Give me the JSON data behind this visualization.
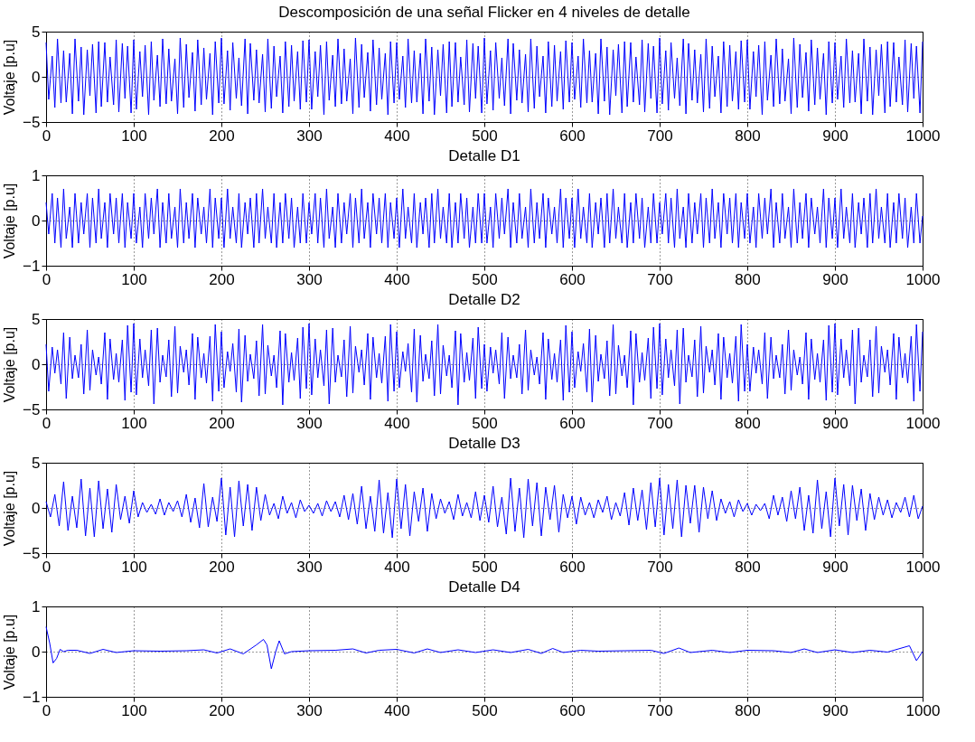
{
  "chart_data": [
    {
      "type": "line",
      "title": "Descomposición de una señal Flicker en 4 niveles de detalle",
      "ylabel": "Voltaje [p.u]",
      "line_style": "solid",
      "grid": true,
      "xlim": [
        0,
        1000
      ],
      "xticks": [
        0,
        100,
        200,
        300,
        400,
        500,
        600,
        700,
        800,
        900,
        1000
      ],
      "ylim": [
        -5,
        5
      ],
      "yticks": [
        -5,
        0,
        5
      ],
      "x": [
        0,
        3,
        7,
        10,
        13,
        17,
        20,
        23,
        27,
        30,
        33,
        37,
        40,
        43,
        47,
        50,
        53,
        57,
        60,
        63,
        67,
        70,
        73,
        77,
        80,
        83,
        87,
        90,
        93,
        97,
        100,
        103,
        107,
        110,
        113,
        117,
        120,
        123,
        127,
        130,
        133,
        137,
        140,
        143,
        147,
        150,
        153,
        157,
        160,
        163,
        167,
        170,
        173,
        177,
        180,
        183,
        187,
        190,
        193,
        197,
        200,
        203,
        207,
        210,
        213,
        217,
        220,
        223,
        227,
        230,
        233,
        237,
        240,
        243,
        247,
        250,
        253,
        257,
        260,
        263,
        267,
        270,
        273,
        277,
        280,
        283,
        287,
        290,
        293,
        297,
        300,
        303,
        307,
        310,
        313,
        317,
        320,
        323,
        327,
        330,
        333,
        337,
        340,
        343,
        347,
        350,
        353,
        357,
        360,
        363,
        367,
        370,
        373,
        377,
        380,
        383,
        387,
        390,
        393,
        397,
        400,
        403,
        407,
        410,
        413,
        417,
        420,
        423,
        427,
        430,
        433,
        437,
        440,
        443,
        447,
        450,
        453,
        457,
        460,
        463,
        467,
        470,
        473,
        477,
        480,
        483,
        487,
        490,
        493,
        497,
        500,
        503,
        507,
        510,
        513,
        517,
        520,
        523,
        527,
        530,
        533,
        537,
        540,
        543,
        547,
        550,
        553,
        557,
        560,
        563,
        567,
        570,
        573,
        577,
        580,
        583,
        587,
        590,
        593,
        597,
        600,
        603,
        607,
        610,
        613,
        617,
        620,
        623,
        627,
        630,
        633,
        637,
        640,
        643,
        647,
        650,
        653,
        657,
        660,
        663,
        667,
        670,
        673,
        677,
        680,
        683,
        687,
        690,
        693,
        697,
        700,
        703,
        707,
        710,
        713,
        717,
        720,
        723,
        727,
        730,
        733,
        737,
        740,
        743,
        747,
        750,
        753,
        757,
        760,
        763,
        767,
        770,
        773,
        777,
        780,
        783,
        787,
        790,
        793,
        797,
        800,
        803,
        807,
        810,
        813,
        817,
        820,
        823,
        827,
        830,
        833,
        837,
        840,
        843,
        847,
        850,
        853,
        857,
        860,
        863,
        867,
        870,
        873,
        877,
        880,
        883,
        887,
        890,
        893,
        897,
        900,
        903,
        907,
        910,
        913,
        917,
        920,
        923,
        927,
        930,
        933,
        937,
        940,
        943,
        947,
        950,
        953,
        957,
        960,
        963,
        967,
        970,
        973,
        977,
        980,
        983,
        987,
        990,
        993,
        997,
        1000
      ],
      "series": [
        {
          "color": "#0000ff",
          "values": [
            3.8,
            -2.5,
            2.3,
            -3.4,
            4.2,
            -2.9,
            2.9,
            -2.8,
            2.6,
            -4.1,
            4.2,
            -2.7,
            3.3,
            -4.2,
            3.0,
            -2.1,
            3.6,
            -4.0,
            3.9,
            -3.3,
            3.8,
            -2.8,
            2.2,
            -3.1,
            4.1,
            -3.9,
            3.7,
            -2.4,
            3.4,
            -4.0,
            4.1,
            -3.6,
            2.8,
            -2.2,
            3.5,
            -4.2,
            3.9,
            -2.6,
            2.4,
            -3.3,
            4.2,
            -3.0,
            3.1,
            -2.7,
            2.0,
            -4.1,
            4.3,
            -3.4,
            3.6,
            -2.3,
            2.7,
            -3.8,
            4.1,
            -3.1,
            3.2,
            -2.5,
            2.6,
            -4.2,
            3.9,
            -2.9,
            4.3,
            -3.0,
            2.9,
            -3.7,
            3.8,
            -2.4,
            2.1,
            -3.2,
            4.2,
            -4.1,
            3.7,
            -2.6,
            3.0,
            -2.9,
            2.5,
            -3.9,
            4.2,
            -3.5,
            3.4,
            -2.2,
            2.3,
            -4.0,
            3.9,
            -3.3,
            3.5,
            -2.7,
            2.8,
            -3.6,
            4.0,
            -2.8,
            4.1,
            -3.6,
            2.8,
            -2.2,
            3.5,
            -4.2,
            3.9,
            -2.6,
            2.4,
            -3.3,
            4.2,
            -3.0,
            3.1,
            -2.7,
            2.0,
            -4.1,
            4.3,
            -3.4,
            3.6,
            -2.3,
            2.7,
            -3.8,
            4.1,
            -3.1,
            3.2,
            -2.5,
            2.6,
            -4.2,
            3.9,
            -2.9,
            3.8,
            -2.5,
            2.3,
            -3.4,
            4.2,
            -2.9,
            2.9,
            -2.8,
            2.6,
            -4.1,
            4.2,
            -2.7,
            3.3,
            -4.2,
            3.0,
            -2.1,
            3.6,
            -4.0,
            3.9,
            -3.3,
            3.8,
            -2.8,
            2.2,
            -3.1,
            4.1,
            -3.9,
            3.7,
            -2.4,
            3.4,
            -4.0,
            4.3,
            -3.0,
            2.9,
            -3.7,
            3.8,
            -2.4,
            2.1,
            -3.2,
            4.2,
            -4.1,
            3.7,
            -2.6,
            3.0,
            -2.9,
            2.5,
            -3.9,
            4.2,
            -3.5,
            3.4,
            -2.2,
            2.3,
            -4.0,
            3.9,
            -3.3,
            3.5,
            -2.7,
            2.8,
            -3.6,
            4.0,
            -2.8,
            3.8,
            -2.5,
            2.3,
            -3.4,
            4.2,
            -2.9,
            2.9,
            -2.8,
            2.6,
            -4.1,
            4.2,
            -2.7,
            3.3,
            -4.2,
            3.0,
            -2.1,
            3.6,
            -4.0,
            3.9,
            -3.3,
            3.8,
            -2.8,
            2.2,
            -3.1,
            4.1,
            -3.9,
            3.7,
            -2.4,
            3.4,
            -4.0,
            4.3,
            -3.0,
            2.9,
            -3.7,
            3.8,
            -2.4,
            2.1,
            -3.2,
            4.2,
            -4.1,
            3.7,
            -2.6,
            3.0,
            -2.9,
            2.5,
            -3.9,
            4.2,
            -3.5,
            3.4,
            -2.2,
            2.3,
            -4.0,
            3.9,
            -3.3,
            3.5,
            -2.7,
            2.8,
            -3.6,
            4.0,
            -2.8,
            4.1,
            -3.6,
            2.8,
            -2.2,
            3.5,
            -4.2,
            3.9,
            -2.6,
            2.4,
            -3.3,
            4.2,
            -3.0,
            3.1,
            -2.7,
            2.0,
            -4.1,
            4.3,
            -3.4,
            3.6,
            -2.3,
            2.7,
            -3.8,
            4.1,
            -3.1,
            3.2,
            -2.5,
            2.6,
            -4.2,
            3.9,
            -2.9,
            3.8,
            -2.5,
            2.3,
            -3.4,
            4.2,
            -2.9,
            2.9,
            -2.8,
            2.6,
            -4.1,
            4.2,
            -2.7,
            3.3,
            -4.2,
            3.0,
            -2.1,
            3.6,
            -4.0,
            3.9,
            -3.3,
            3.8,
            -2.8,
            2.2,
            -3.1,
            4.1,
            -3.9,
            3.7,
            -2.4,
            3.4,
            -4.0,
            3.9
          ]
        }
      ]
    },
    {
      "type": "line",
      "title": "Detalle D1",
      "ylabel": "Voltaje [p.u]",
      "line_style": "solid",
      "grid": true,
      "xlim": [
        0,
        1000
      ],
      "xticks": [
        0,
        100,
        200,
        300,
        400,
        500,
        600,
        700,
        800,
        900,
        1000
      ],
      "ylim": [
        -1,
        1
      ],
      "yticks": [
        -1,
        0,
        1
      ],
      "x": [
        0,
        3,
        7,
        10,
        13,
        17,
        20,
        23,
        27,
        30,
        33,
        37,
        40,
        43,
        47,
        50,
        53,
        57,
        60,
        63,
        67,
        70,
        73,
        77,
        80,
        83,
        87,
        90,
        93,
        97,
        100,
        103,
        107,
        110,
        113,
        117,
        120,
        123,
        127,
        130,
        133,
        137,
        140,
        143,
        147,
        150,
        153,
        157,
        160,
        163,
        167,
        170,
        173,
        177,
        180,
        183,
        187,
        190,
        193,
        197,
        200,
        203,
        207,
        210,
        213,
        217,
        220,
        223,
        227,
        230,
        233,
        237,
        240,
        243,
        247,
        250,
        253,
        257,
        260,
        263,
        267,
        270,
        273,
        277,
        280,
        283,
        287,
        290,
        293,
        297,
        300,
        303,
        307,
        310,
        313,
        317,
        320,
        323,
        327,
        330,
        333,
        337,
        340,
        343,
        347,
        350,
        353,
        357,
        360,
        363,
        367,
        370,
        373,
        377,
        380,
        383,
        387,
        390,
        393,
        397,
        400,
        403,
        407,
        410,
        413,
        417,
        420,
        423,
        427,
        430,
        433,
        437,
        440,
        443,
        447,
        450,
        453,
        457,
        460,
        463,
        467,
        470,
        473,
        477,
        480,
        483,
        487,
        490,
        493,
        497,
        500,
        503,
        507,
        510,
        513,
        517,
        520,
        523,
        527,
        530,
        533,
        537,
        540,
        543,
        547,
        550,
        553,
        557,
        560,
        563,
        567,
        570,
        573,
        577,
        580,
        583,
        587,
        590,
        593,
        597,
        600,
        603,
        607,
        610,
        613,
        617,
        620,
        623,
        627,
        630,
        633,
        637,
        640,
        643,
        647,
        650,
        653,
        657,
        660,
        663,
        667,
        670,
        673,
        677,
        680,
        683,
        687,
        690,
        693,
        697,
        700,
        703,
        707,
        710,
        713,
        717,
        720,
        723,
        727,
        730,
        733,
        737,
        740,
        743,
        747,
        750,
        753,
        757,
        760,
        763,
        767,
        770,
        773,
        777,
        780,
        783,
        787,
        790,
        793,
        797,
        800,
        803,
        807,
        810,
        813,
        817,
        820,
        823,
        827,
        830,
        833,
        837,
        840,
        843,
        847,
        850,
        853,
        857,
        860,
        863,
        867,
        870,
        873,
        877,
        880,
        883,
        887,
        890,
        893,
        897,
        900,
        903,
        907,
        910,
        913,
        917,
        920,
        923,
        927,
        930,
        933,
        937,
        940,
        943,
        947,
        950,
        953,
        957,
        960,
        963,
        967,
        970,
        973,
        977,
        980,
        983,
        987,
        990,
        993,
        997,
        1000
      ],
      "series": [
        {
          "color": "#0000ff",
          "values": [
            0.4,
            -0.3,
            0.6,
            -0.5,
            0.5,
            -0.6,
            0.7,
            -0.4,
            0.3,
            -0.6,
            0.6,
            -0.5,
            0.4,
            -0.3,
            0.6,
            -0.6,
            0.5,
            -0.5,
            0.7,
            -0.4,
            0.4,
            -0.6,
            0.6,
            -0.3,
            0.5,
            -0.5,
            0.6,
            -0.6,
            0.4,
            -0.4,
            0.6,
            -0.5,
            0.3,
            -0.6,
            0.6,
            -0.4,
            0.5,
            -0.3,
            0.7,
            -0.6,
            0.4,
            -0.5,
            0.6,
            -0.4,
            0.3,
            -0.6,
            0.7,
            -0.5,
            0.4,
            -0.4,
            0.6,
            -0.6,
            0.5,
            -0.3,
            0.3,
            -0.5,
            0.7,
            -0.6,
            0.5,
            -0.4,
            0.5,
            -0.6,
            0.7,
            -0.4,
            0.3,
            -0.5,
            0.6,
            -0.6,
            0.4,
            -0.3,
            0.5,
            -0.6,
            0.6,
            -0.5,
            0.7,
            -0.4,
            0.3,
            -0.5,
            0.6,
            -0.6,
            0.4,
            -0.5,
            0.6,
            -0.4,
            0.5,
            -0.6,
            0.3,
            -0.5,
            0.6,
            -0.5,
            0.4,
            -0.3,
            0.6,
            -0.5,
            0.5,
            -0.6,
            0.7,
            -0.4,
            0.3,
            -0.6,
            0.6,
            -0.5,
            0.4,
            -0.3,
            0.6,
            -0.6,
            0.5,
            -0.5,
            0.7,
            -0.4,
            0.4,
            -0.6,
            0.6,
            -0.3,
            0.5,
            -0.5,
            0.6,
            -0.6,
            0.4,
            -0.4,
            0.5,
            -0.6,
            0.7,
            -0.4,
            0.3,
            -0.5,
            0.6,
            -0.6,
            0.4,
            -0.3,
            0.5,
            -0.6,
            0.6,
            -0.5,
            0.7,
            -0.4,
            0.3,
            -0.5,
            0.6,
            -0.6,
            0.4,
            -0.5,
            0.6,
            -0.4,
            0.5,
            -0.6,
            0.3,
            -0.5,
            0.6,
            -0.5,
            0.6,
            -0.5,
            0.3,
            -0.6,
            0.6,
            -0.4,
            0.5,
            -0.3,
            0.7,
            -0.6,
            0.4,
            -0.5,
            0.6,
            -0.4,
            0.3,
            -0.6,
            0.7,
            -0.5,
            0.4,
            -0.4,
            0.6,
            -0.6,
            0.5,
            -0.3,
            0.3,
            -0.5,
            0.7,
            -0.6,
            0.5,
            -0.4,
            0.5,
            -0.6,
            0.7,
            -0.4,
            0.3,
            -0.5,
            0.6,
            -0.6,
            0.4,
            -0.3,
            0.5,
            -0.6,
            0.6,
            -0.5,
            0.7,
            -0.4,
            0.3,
            -0.5,
            0.6,
            -0.6,
            0.4,
            -0.5,
            0.6,
            -0.4,
            0.5,
            -0.6,
            0.3,
            -0.5,
            0.6,
            -0.5,
            0.4,
            -0.3,
            0.6,
            -0.5,
            0.5,
            -0.6,
            0.7,
            -0.4,
            0.3,
            -0.6,
            0.6,
            -0.5,
            0.4,
            -0.3,
            0.6,
            -0.6,
            0.5,
            -0.5,
            0.7,
            -0.4,
            0.4,
            -0.6,
            0.6,
            -0.3,
            0.5,
            -0.5,
            0.6,
            -0.6,
            0.4,
            -0.4,
            0.6,
            -0.5,
            0.3,
            -0.6,
            0.6,
            -0.4,
            0.5,
            -0.3,
            0.7,
            -0.6,
            0.4,
            -0.5,
            0.6,
            -0.4,
            0.3,
            -0.6,
            0.7,
            -0.5,
            0.4,
            -0.4,
            0.6,
            -0.6,
            0.5,
            -0.3,
            0.3,
            -0.5,
            0.7,
            -0.6,
            0.5,
            -0.4,
            0.5,
            -0.6,
            0.7,
            -0.4,
            0.3,
            -0.5,
            0.6,
            -0.6,
            0.4,
            -0.3,
            0.5,
            -0.6,
            0.6,
            -0.5,
            0.7,
            -0.4,
            0.3,
            -0.5,
            0.6,
            -0.6,
            0.4,
            -0.5,
            0.6,
            -0.4,
            0.5,
            -0.6,
            0.3,
            -0.5,
            0.6,
            -0.5,
            0.1
          ]
        }
      ]
    },
    {
      "type": "line",
      "title": "Detalle D2",
      "ylabel": "Voltaje [p.u]",
      "line_style": "solid",
      "grid": true,
      "xlim": [
        0,
        1000
      ],
      "xticks": [
        0,
        100,
        200,
        300,
        400,
        500,
        600,
        700,
        800,
        900,
        1000
      ],
      "ylim": [
        -5,
        5
      ],
      "yticks": [
        -5,
        0,
        5
      ],
      "x": [
        0,
        3,
        7,
        10,
        13,
        17,
        20,
        23,
        27,
        30,
        33,
        37,
        40,
        43,
        47,
        50,
        53,
        57,
        60,
        63,
        67,
        70,
        73,
        77,
        80,
        83,
        87,
        90,
        93,
        97,
        100,
        103,
        107,
        110,
        113,
        117,
        120,
        123,
        127,
        130,
        133,
        137,
        140,
        143,
        147,
        150,
        153,
        157,
        160,
        163,
        167,
        170,
        173,
        177,
        180,
        183,
        187,
        190,
        193,
        197,
        200,
        203,
        207,
        210,
        213,
        217,
        220,
        223,
        227,
        230,
        233,
        237,
        240,
        243,
        247,
        250,
        253,
        257,
        260,
        263,
        267,
        270,
        273,
        277,
        280,
        283,
        287,
        290,
        293,
        297,
        300,
        303,
        307,
        310,
        313,
        317,
        320,
        323,
        327,
        330,
        333,
        337,
        340,
        343,
        347,
        350,
        353,
        357,
        360,
        363,
        367,
        370,
        373,
        377,
        380,
        383,
        387,
        390,
        393,
        397,
        400,
        403,
        407,
        410,
        413,
        417,
        420,
        423,
        427,
        430,
        433,
        437,
        440,
        443,
        447,
        450,
        453,
        457,
        460,
        463,
        467,
        470,
        473,
        477,
        480,
        483,
        487,
        490,
        493,
        497,
        500,
        503,
        507,
        510,
        513,
        517,
        520,
        523,
        527,
        530,
        533,
        537,
        540,
        543,
        547,
        550,
        553,
        557,
        560,
        563,
        567,
        570,
        573,
        577,
        580,
        583,
        587,
        590,
        593,
        597,
        600,
        603,
        607,
        610,
        613,
        617,
        620,
        623,
        627,
        630,
        633,
        637,
        640,
        643,
        647,
        650,
        653,
        657,
        660,
        663,
        667,
        670,
        673,
        677,
        680,
        683,
        687,
        690,
        693,
        697,
        700,
        703,
        707,
        710,
        713,
        717,
        720,
        723,
        727,
        730,
        733,
        737,
        740,
        743,
        747,
        750,
        753,
        757,
        760,
        763,
        767,
        770,
        773,
        777,
        780,
        783,
        787,
        790,
        793,
        797,
        800,
        803,
        807,
        810,
        813,
        817,
        820,
        823,
        827,
        830,
        833,
        837,
        840,
        843,
        847,
        850,
        853,
        857,
        860,
        863,
        867,
        870,
        873,
        877,
        880,
        883,
        887,
        890,
        893,
        897,
        900,
        903,
        907,
        910,
        913,
        917,
        920,
        923,
        927,
        930,
        933,
        937,
        940,
        943,
        947,
        950,
        953,
        957,
        960,
        963,
        967,
        970,
        973,
        977,
        980,
        983,
        987,
        990,
        993,
        997,
        1000
      ],
      "series": [
        {
          "color": "#0000ff",
          "values": [
            2.2,
            -3.0,
            1.9,
            -1.0,
            1.6,
            -2.2,
            3.5,
            -3.8,
            3.0,
            -1.6,
            1.0,
            -1.5,
            2.2,
            -3.3,
            3.8,
            -2.9,
            1.6,
            -1.2,
            0.8,
            -2.2,
            3.5,
            -3.9,
            2.8,
            -1.7,
            1.2,
            -2.0,
            2.7,
            -4.0,
            4.3,
            -3.1,
            4.5,
            -3.4,
            2.8,
            -1.5,
            1.6,
            -2.4,
            3.8,
            -4.4,
            4.0,
            -2.0,
            1.0,
            -1.4,
            2.7,
            -3.6,
            4.2,
            -3.2,
            2.0,
            -0.9,
            1.6,
            -2.3,
            3.4,
            -3.9,
            3.0,
            -1.5,
            1.2,
            -2.1,
            3.1,
            -4.1,
            4.4,
            -3.0,
            3.6,
            -2.6,
            1.4,
            -0.8,
            2.3,
            -3.1,
            3.9,
            -4.2,
            3.2,
            -1.9,
            1.1,
            -1.6,
            2.6,
            -3.5,
            4.4,
            -3.3,
            2.1,
            -1.3,
            1.0,
            -2.6,
            3.7,
            -4.5,
            3.4,
            -2.0,
            1.3,
            -1.8,
            2.9,
            -3.8,
            4.1,
            -2.7,
            4.5,
            -3.4,
            2.8,
            -1.5,
            1.6,
            -2.4,
            3.8,
            -4.4,
            4.0,
            -2.0,
            1.0,
            -1.4,
            2.7,
            -3.6,
            4.2,
            -3.2,
            2.0,
            -0.9,
            1.6,
            -2.3,
            3.4,
            -3.9,
            3.0,
            -1.5,
            1.2,
            -2.1,
            3.1,
            -4.1,
            4.4,
            -3.0,
            3.6,
            -2.6,
            1.4,
            -0.8,
            2.3,
            -3.1,
            3.9,
            -4.2,
            3.2,
            -1.9,
            1.1,
            -1.6,
            2.6,
            -3.5,
            4.4,
            -3.3,
            2.1,
            -1.3,
            1.0,
            -2.6,
            3.7,
            -4.5,
            3.4,
            -2.0,
            1.3,
            -1.8,
            2.9,
            -3.8,
            4.1,
            -2.7,
            2.2,
            -3.0,
            1.9,
            -1.0,
            1.6,
            -2.2,
            3.5,
            -3.8,
            3.0,
            -1.6,
            1.0,
            -1.5,
            2.2,
            -3.3,
            3.8,
            -2.9,
            1.6,
            -1.2,
            0.8,
            -2.2,
            3.5,
            -3.9,
            2.8,
            -1.7,
            1.2,
            -2.0,
            2.7,
            -4.0,
            4.3,
            -3.1,
            3.6,
            -2.6,
            1.4,
            -0.8,
            2.3,
            -3.1,
            3.9,
            -4.2,
            3.2,
            -1.9,
            1.1,
            -1.6,
            2.6,
            -3.5,
            4.4,
            -3.3,
            2.1,
            -1.3,
            1.0,
            -2.6,
            3.7,
            -4.5,
            3.4,
            -2.0,
            1.3,
            -1.8,
            2.9,
            -3.8,
            4.1,
            -2.7,
            4.5,
            -3.4,
            2.8,
            -1.5,
            1.6,
            -2.4,
            3.8,
            -4.4,
            4.0,
            -2.0,
            1.0,
            -1.4,
            2.7,
            -3.6,
            4.2,
            -3.2,
            2.0,
            -0.9,
            1.6,
            -2.3,
            3.4,
            -3.9,
            3.0,
            -1.5,
            1.2,
            -2.1,
            3.1,
            -4.1,
            4.4,
            -3.0,
            2.2,
            -3.0,
            1.9,
            -1.0,
            1.6,
            -2.2,
            3.5,
            -3.8,
            3.0,
            -1.6,
            1.0,
            -1.5,
            2.2,
            -3.3,
            3.8,
            -2.9,
            1.6,
            -1.2,
            0.8,
            -2.2,
            3.5,
            -3.9,
            2.8,
            -1.7,
            1.2,
            -2.0,
            2.7,
            -4.0,
            4.3,
            -3.1,
            4.5,
            -3.4,
            2.8,
            -1.5,
            1.6,
            -2.4,
            3.8,
            -4.4,
            4.0,
            -2.0,
            1.0,
            -1.4,
            2.7,
            -3.6,
            4.2,
            -3.2,
            2.0,
            -0.9,
            1.6,
            -2.3,
            3.4,
            -3.9,
            3.0,
            -1.5,
            1.2,
            -2.1,
            3.1,
            -4.1,
            4.4,
            -3.0,
            3.6
          ]
        }
      ]
    },
    {
      "type": "line",
      "title": "Detalle D3",
      "ylabel": "Voltaje [p.u]",
      "line_style": "solid",
      "grid": true,
      "xlim": [
        0,
        1000
      ],
      "xticks": [
        0,
        100,
        200,
        300,
        400,
        500,
        600,
        700,
        800,
        900,
        1000
      ],
      "ylim": [
        -5,
        5
      ],
      "yticks": [
        -5,
        0,
        5
      ],
      "x": [
        0,
        5,
        10,
        15,
        20,
        25,
        30,
        35,
        40,
        45,
        50,
        55,
        60,
        65,
        70,
        75,
        80,
        85,
        90,
        95,
        100,
        105,
        110,
        115,
        120,
        125,
        130,
        135,
        140,
        145,
        150,
        155,
        160,
        165,
        170,
        175,
        180,
        185,
        190,
        195,
        200,
        205,
        210,
        215,
        220,
        225,
        230,
        235,
        240,
        245,
        250,
        255,
        260,
        265,
        270,
        275,
        280,
        285,
        290,
        295,
        300,
        305,
        310,
        315,
        320,
        325,
        330,
        335,
        340,
        345,
        350,
        355,
        360,
        365,
        370,
        375,
        380,
        385,
        390,
        395,
        400,
        405,
        410,
        415,
        420,
        425,
        430,
        435,
        440,
        445,
        450,
        455,
        460,
        465,
        470,
        475,
        480,
        485,
        490,
        495,
        500,
        505,
        510,
        515,
        520,
        525,
        530,
        535,
        540,
        545,
        550,
        555,
        560,
        565,
        570,
        575,
        580,
        585,
        590,
        595,
        600,
        605,
        610,
        615,
        620,
        625,
        630,
        635,
        640,
        645,
        650,
        655,
        660,
        665,
        670,
        675,
        680,
        685,
        690,
        695,
        700,
        705,
        710,
        715,
        720,
        725,
        730,
        735,
        740,
        745,
        750,
        755,
        760,
        765,
        770,
        775,
        780,
        785,
        790,
        795,
        800,
        805,
        810,
        815,
        820,
        825,
        830,
        835,
        840,
        845,
        850,
        855,
        860,
        865,
        870,
        875,
        880,
        885,
        890,
        895,
        900,
        905,
        910,
        915,
        920,
        925,
        930,
        935,
        940,
        945,
        950,
        955,
        960,
        965,
        970,
        975,
        980,
        985,
        990,
        995,
        1000
      ],
      "series": [
        {
          "color": "#0000ff",
          "values": [
            0.7,
            -1.0,
            1.5,
            -2.0,
            2.9,
            -2.5,
            1.3,
            -2.2,
            3.2,
            -3.1,
            2.2,
            -3.2,
            3.0,
            -2.3,
            2.1,
            -2.7,
            2.6,
            -1.3,
            1.3,
            -1.7,
            1.9,
            -1.0,
            0.6,
            -0.5,
            0.4,
            -0.7,
            1.0,
            -0.8,
            0.6,
            -0.4,
            0.8,
            -1.0,
            1.5,
            -1.6,
            1.1,
            -2.2,
            2.7,
            -2.1,
            1.2,
            -1.5,
            3.3,
            -3.0,
            2.3,
            -3.2,
            3.0,
            -2.0,
            2.6,
            -2.5,
            2.3,
            -1.4,
            1.5,
            -0.8,
            0.5,
            -1.2,
            1.3,
            -0.6,
            0.6,
            -1.1,
            0.9,
            -0.4,
            0.3,
            -0.6,
            0.5,
            -0.9,
            0.8,
            -0.4,
            0.7,
            -1.0,
            1.4,
            -1.3,
            1.6,
            -1.8,
            2.4,
            -2.3,
            1.3,
            -2.6,
            3.1,
            -2.8,
            1.7,
            -3.3,
            3.2,
            -2.3,
            2.6,
            -3.1,
            1.8,
            -1.5,
            2.2,
            -2.6,
            1.6,
            -1.2,
            1.0,
            -0.6,
            0.7,
            -1.3,
            1.5,
            -0.9,
            0.6,
            -1.1,
            1.8,
            -1.4,
            1.4,
            -1.6,
            2.4,
            -2.1,
            1.2,
            -2.9,
            3.3,
            -2.6,
            2.2,
            -3.3,
            3.2,
            -2.0,
            2.8,
            -3.1,
            2.3,
            -1.3,
            2.5,
            -2.7,
            1.5,
            -1.1,
            1.3,
            -1.8,
            1.2,
            -0.8,
            0.6,
            -1.1,
            0.9,
            -0.5,
            1.3,
            -1.3,
            0.6,
            -0.9,
            1.7,
            -1.9,
            2.2,
            -1.4,
            2.0,
            -2.4,
            2.8,
            -2.1,
            3.3,
            -3.0,
            2.6,
            -2.3,
            3.1,
            -3.2,
            2.5,
            -1.7,
            2.5,
            -2.7,
            2.3,
            -1.2,
            1.9,
            -1.4,
            1.0,
            -0.6,
            0.7,
            -1.0,
            0.9,
            -0.4,
            0.5,
            -0.8,
            0.4,
            -0.3,
            0.5,
            -1.2,
            1.4,
            -0.8,
            1.2,
            -1.5,
            1.9,
            -1.2,
            2.3,
            -2.5,
            1.4,
            -2.8,
            3.1,
            -2.3,
            1.8,
            -3.2,
            3.3,
            -2.0,
            2.6,
            -3.0,
            2.5,
            -1.4,
            2.1,
            -2.5,
            1.6,
            -1.3,
            1.2,
            -0.8,
            0.9,
            -1.1,
            0.6,
            -0.5,
            1.2,
            -1.0,
            1.4,
            -1.2,
            0.2
          ]
        }
      ]
    },
    {
      "type": "line",
      "title": "Detalle D4",
      "ylabel": "Voltaje [p.u]",
      "line_style": "solid",
      "grid": true,
      "xlim": [
        0,
        1000
      ],
      "xticks": [
        0,
        100,
        200,
        300,
        400,
        500,
        600,
        700,
        800,
        900,
        1000
      ],
      "ylim": [
        -1,
        1
      ],
      "yticks": [
        -1,
        0,
        1
      ],
      "x": [
        0,
        4,
        8,
        12,
        16,
        20,
        25,
        35,
        50,
        65,
        80,
        100,
        130,
        160,
        180,
        195,
        210,
        225,
        240,
        248,
        252,
        257,
        262,
        266,
        272,
        280,
        300,
        330,
        350,
        365,
        380,
        400,
        420,
        435,
        450,
        470,
        490,
        510,
        530,
        550,
        565,
        578,
        590,
        610,
        630,
        660,
        690,
        705,
        722,
        735,
        760,
        780,
        800,
        830,
        850,
        865,
        880,
        900,
        920,
        940,
        960,
        985,
        993,
        1000
      ],
      "series": [
        {
          "color": "#0000ff",
          "values": [
            0.55,
            0.2,
            -0.25,
            -0.15,
            0.05,
            0.0,
            0.03,
            0.03,
            -0.04,
            0.05,
            -0.02,
            0.02,
            0.01,
            0.02,
            0.04,
            -0.03,
            0.06,
            -0.05,
            0.15,
            0.27,
            0.15,
            -0.38,
            0.0,
            0.24,
            -0.05,
            0.0,
            0.02,
            0.03,
            0.06,
            -0.03,
            0.03,
            0.05,
            -0.03,
            0.06,
            -0.02,
            0.04,
            -0.02,
            0.04,
            -0.02,
            0.05,
            -0.04,
            0.07,
            -0.02,
            0.03,
            0.01,
            0.02,
            0.03,
            -0.04,
            0.08,
            -0.02,
            0.03,
            -0.02,
            0.03,
            0.02,
            -0.02,
            0.06,
            -0.02,
            0.04,
            -0.02,
            0.03,
            -0.01,
            0.13,
            -0.2,
            0.0
          ]
        }
      ]
    }
  ]
}
